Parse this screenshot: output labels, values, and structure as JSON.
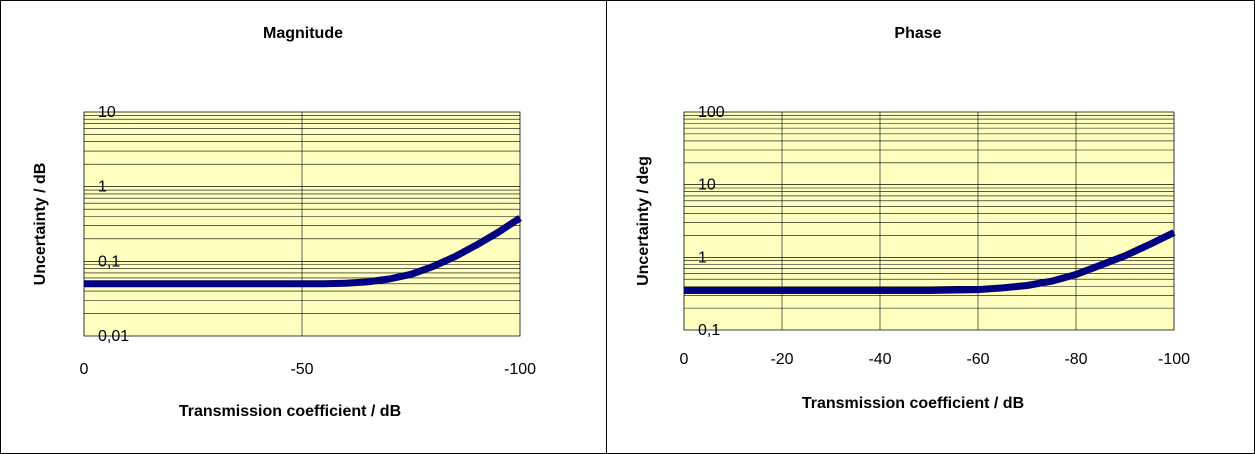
{
  "chart_data": [
    {
      "type": "line",
      "title": "Magnitude",
      "xlabel": "Transmission coefficient / dB",
      "ylabel": "Uncertainty / dB",
      "yscale": "log",
      "xlim": [
        0,
        -100
      ],
      "ylim": [
        0.01,
        10
      ],
      "x_ticks": [
        0,
        -50,
        -100
      ],
      "x_tick_labels": [
        "0",
        "-50",
        "-100"
      ],
      "y_ticks": [
        10,
        1,
        0.1,
        0.01
      ],
      "y_tick_labels": [
        "10",
        "1",
        "0,1",
        "0,01"
      ],
      "grid": true,
      "plot_background": "#ffffc0",
      "series": [
        {
          "color": "#000080",
          "x": [
            0,
            -10,
            -20,
            -30,
            -40,
            -50,
            -55,
            -60,
            -65,
            -70,
            -75,
            -80,
            -85,
            -90,
            -95,
            -100
          ],
          "y": [
            0.05,
            0.05,
            0.05,
            0.05,
            0.05,
            0.05,
            0.05,
            0.051,
            0.053,
            0.058,
            0.067,
            0.085,
            0.115,
            0.165,
            0.245,
            0.38
          ]
        }
      ]
    },
    {
      "type": "line",
      "title": "Phase",
      "xlabel": "Transmission coefficient / dB",
      "ylabel": "Uncertainty / deg",
      "yscale": "log",
      "xlim": [
        0,
        -100
      ],
      "ylim": [
        0.1,
        100
      ],
      "x_ticks": [
        0,
        -20,
        -40,
        -60,
        -80,
        -100
      ],
      "x_tick_labels": [
        "0",
        "-20",
        "-40",
        "-60",
        "-80",
        "-100"
      ],
      "y_ticks": [
        100,
        10,
        1,
        0.1
      ],
      "y_tick_labels": [
        "100",
        "10",
        "1",
        "0,1"
      ],
      "grid": true,
      "plot_background": "#ffffc0",
      "series": [
        {
          "color": "#000080",
          "x": [
            0,
            -10,
            -20,
            -30,
            -40,
            -50,
            -60,
            -65,
            -70,
            -75,
            -80,
            -85,
            -90,
            -95,
            -100
          ],
          "y": [
            0.35,
            0.35,
            0.35,
            0.35,
            0.35,
            0.35,
            0.36,
            0.38,
            0.41,
            0.47,
            0.58,
            0.78,
            1.05,
            1.5,
            2.2
          ]
        }
      ]
    }
  ]
}
